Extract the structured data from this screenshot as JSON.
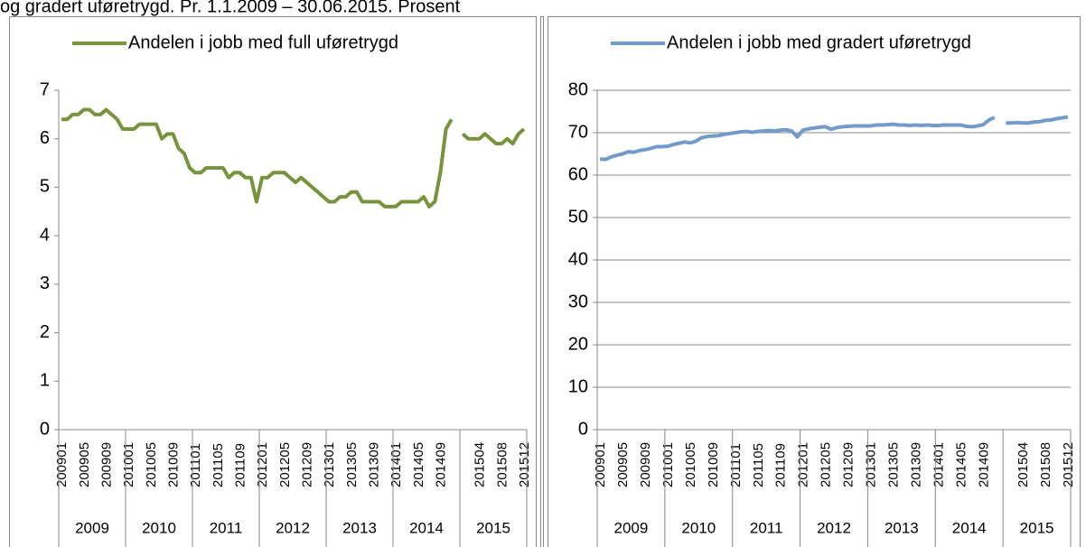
{
  "caption": "og gradert uføretrygd. Pr. 1.1.2009 – 30.06.2015. Prosent",
  "chart_data": [
    {
      "type": "line",
      "categories": [
        "200901",
        null,
        null,
        null,
        "200905",
        null,
        null,
        null,
        "200909",
        null,
        null,
        null,
        "201001",
        null,
        null,
        null,
        "201005",
        null,
        null,
        null,
        "201009",
        null,
        null,
        null,
        "201101",
        null,
        null,
        null,
        "201105",
        null,
        null,
        null,
        "201109",
        null,
        null,
        null,
        "201201",
        null,
        null,
        null,
        "201205",
        null,
        null,
        null,
        "201209",
        null,
        null,
        null,
        "201301",
        null,
        null,
        null,
        "201305",
        null,
        null,
        null,
        "201309",
        null,
        null,
        null,
        "201401",
        null,
        null,
        null,
        "201405",
        null,
        null,
        null,
        "201409",
        null,
        null,
        null,
        null,
        null,
        null,
        "201504",
        null,
        null,
        null,
        "201508",
        null,
        null,
        null,
        "201512"
      ],
      "year_labels": [
        "2009",
        "2010",
        "2011",
        "2012",
        "2013",
        "2014",
        "2015"
      ],
      "series": [
        {
          "name": "Andelen i jobb med full uføretrygd",
          "color": "#77933c",
          "values": [
            6.4,
            6.4,
            6.5,
            6.5,
            6.6,
            6.6,
            6.5,
            6.5,
            6.6,
            6.5,
            6.4,
            6.2,
            6.2,
            6.2,
            6.3,
            6.3,
            6.3,
            6.3,
            6.0,
            6.1,
            6.1,
            5.8,
            5.7,
            5.4,
            5.3,
            5.3,
            5.4,
            5.4,
            5.4,
            5.4,
            5.2,
            5.3,
            5.3,
            5.2,
            5.2,
            4.7,
            5.2,
            5.2,
            5.3,
            5.3,
            5.3,
            5.2,
            5.1,
            5.2,
            5.1,
            5.0,
            4.9,
            4.8,
            4.7,
            4.7,
            4.8,
            4.8,
            4.9,
            4.9,
            4.7,
            4.7,
            4.7,
            4.7,
            4.6,
            4.6,
            4.6,
            4.7,
            4.7,
            4.7,
            4.7,
            4.8,
            4.6,
            4.7,
            5.3,
            6.2,
            6.4,
            null,
            6.1,
            6.0,
            6.0,
            6.0,
            6.1,
            6.0,
            5.9,
            5.9,
            6.0,
            5.9,
            6.1,
            6.2
          ]
        }
      ],
      "ylim": [
        0,
        7
      ],
      "yticks": [
        0,
        1,
        2,
        3,
        4,
        5,
        6,
        7
      ],
      "grid": false
    },
    {
      "type": "line",
      "categories": [
        "200901",
        null,
        null,
        null,
        "200905",
        null,
        null,
        null,
        "200909",
        null,
        null,
        null,
        "201001",
        null,
        null,
        null,
        "201005",
        null,
        null,
        null,
        "201009",
        null,
        null,
        null,
        "201101",
        null,
        null,
        null,
        "201105",
        null,
        null,
        null,
        "201109",
        null,
        null,
        null,
        "201201",
        null,
        null,
        null,
        "201205",
        null,
        null,
        null,
        "201209",
        null,
        null,
        null,
        "201301",
        null,
        null,
        null,
        "201305",
        null,
        null,
        null,
        "201309",
        null,
        null,
        null,
        "201401",
        null,
        null,
        null,
        "201405",
        null,
        null,
        null,
        "201409",
        null,
        null,
        null,
        null,
        null,
        null,
        "201504",
        null,
        null,
        null,
        "201508",
        null,
        null,
        null,
        "201512"
      ],
      "year_labels": [
        "2009",
        "2010",
        "2011",
        "2012",
        "2013",
        "2014",
        "2015"
      ],
      "series": [
        {
          "name": "Andelen i jobb med gradert uføretrygd",
          "color": "#729aca",
          "values": [
            63.8,
            63.7,
            64.3,
            64.7,
            65.0,
            65.5,
            65.4,
            65.8,
            66.0,
            66.3,
            66.7,
            66.7,
            66.8,
            67.2,
            67.5,
            67.8,
            67.6,
            68.0,
            68.8,
            69.1,
            69.2,
            69.3,
            69.6,
            69.8,
            70.0,
            70.2,
            70.3,
            70.1,
            70.3,
            70.4,
            70.5,
            70.4,
            70.6,
            70.7,
            70.4,
            69.0,
            70.6,
            70.9,
            71.1,
            71.3,
            71.4,
            70.8,
            71.2,
            71.4,
            71.5,
            71.6,
            71.6,
            71.6,
            71.6,
            71.8,
            71.8,
            71.9,
            72.0,
            71.8,
            71.8,
            71.7,
            71.8,
            71.7,
            71.8,
            71.7,
            71.7,
            71.8,
            71.8,
            71.8,
            71.8,
            71.5,
            71.4,
            71.6,
            71.9,
            73.0,
            73.6,
            null,
            72.3,
            72.3,
            72.4,
            72.3,
            72.3,
            72.5,
            72.6,
            72.9,
            73.0,
            73.3,
            73.5,
            73.7
          ]
        }
      ],
      "ylim": [
        0,
        80
      ],
      "yticks": [
        0,
        10,
        20,
        30,
        40,
        50,
        60,
        70,
        80
      ],
      "grid": true
    }
  ]
}
